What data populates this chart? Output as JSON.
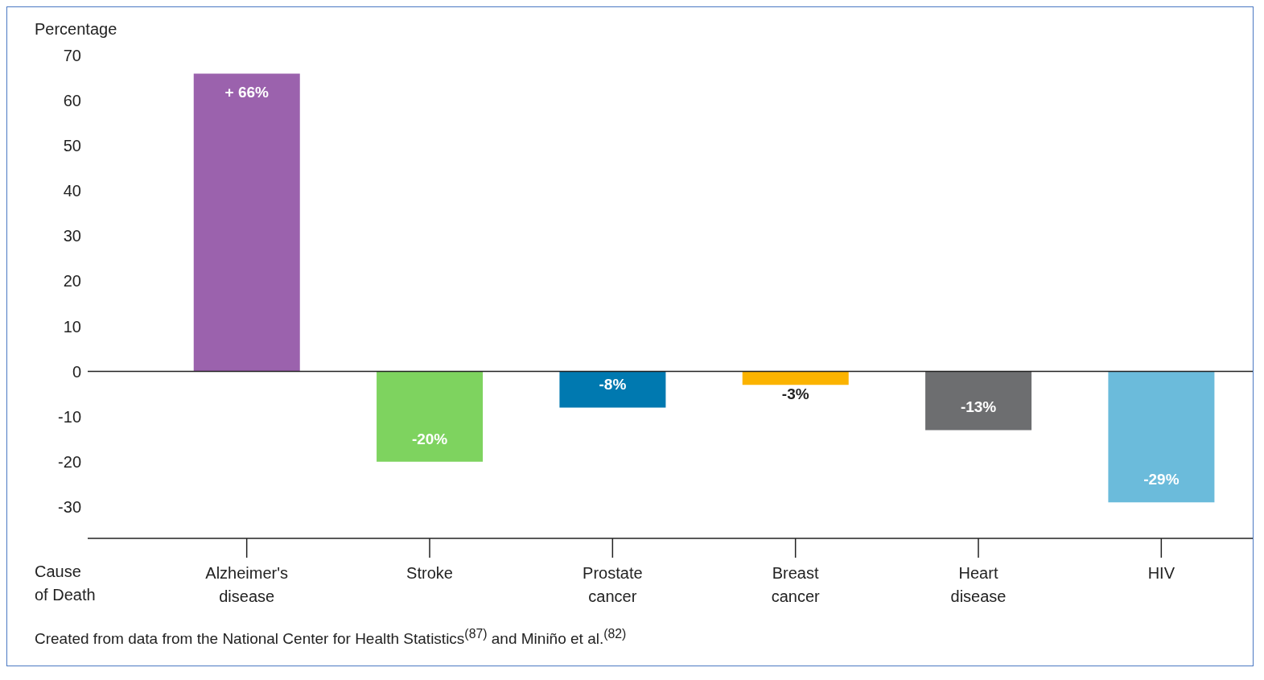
{
  "chart_data": {
    "type": "bar",
    "ylabel": "Percentage",
    "xlabel": "Cause of Death",
    "categories": [
      "Alzheimer's\ndisease",
      "Stroke",
      "Prostate\ncancer",
      "Breast\ncancer",
      "Heart\ndisease",
      "HIV"
    ],
    "values": [
      66,
      -20,
      -8,
      -3,
      -13,
      -29
    ],
    "colors": [
      "#9b62ad",
      "#7ed35f",
      "#0079b0",
      "#fbb300",
      "#6d6e70",
      "#6bbbdb"
    ],
    "value_labels": [
      "+ 66%",
      "-20%",
      "-8%",
      "-3%",
      "-13%",
      "-29%"
    ],
    "ylim": [
      -37,
      70
    ],
    "yticks": [
      -30,
      -20,
      -10,
      0,
      10,
      20,
      30,
      40,
      50,
      60,
      70
    ],
    "grid": false,
    "legend": false,
    "ref_lines": [
      {
        "axis": "y",
        "value": 0,
        "color": "#222222"
      }
    ],
    "annotations": [
      "Created from data from the National Center for Health Statistics$^{(87)}$ and Miniño et al.$^{(82)}$"
    ]
  }
}
